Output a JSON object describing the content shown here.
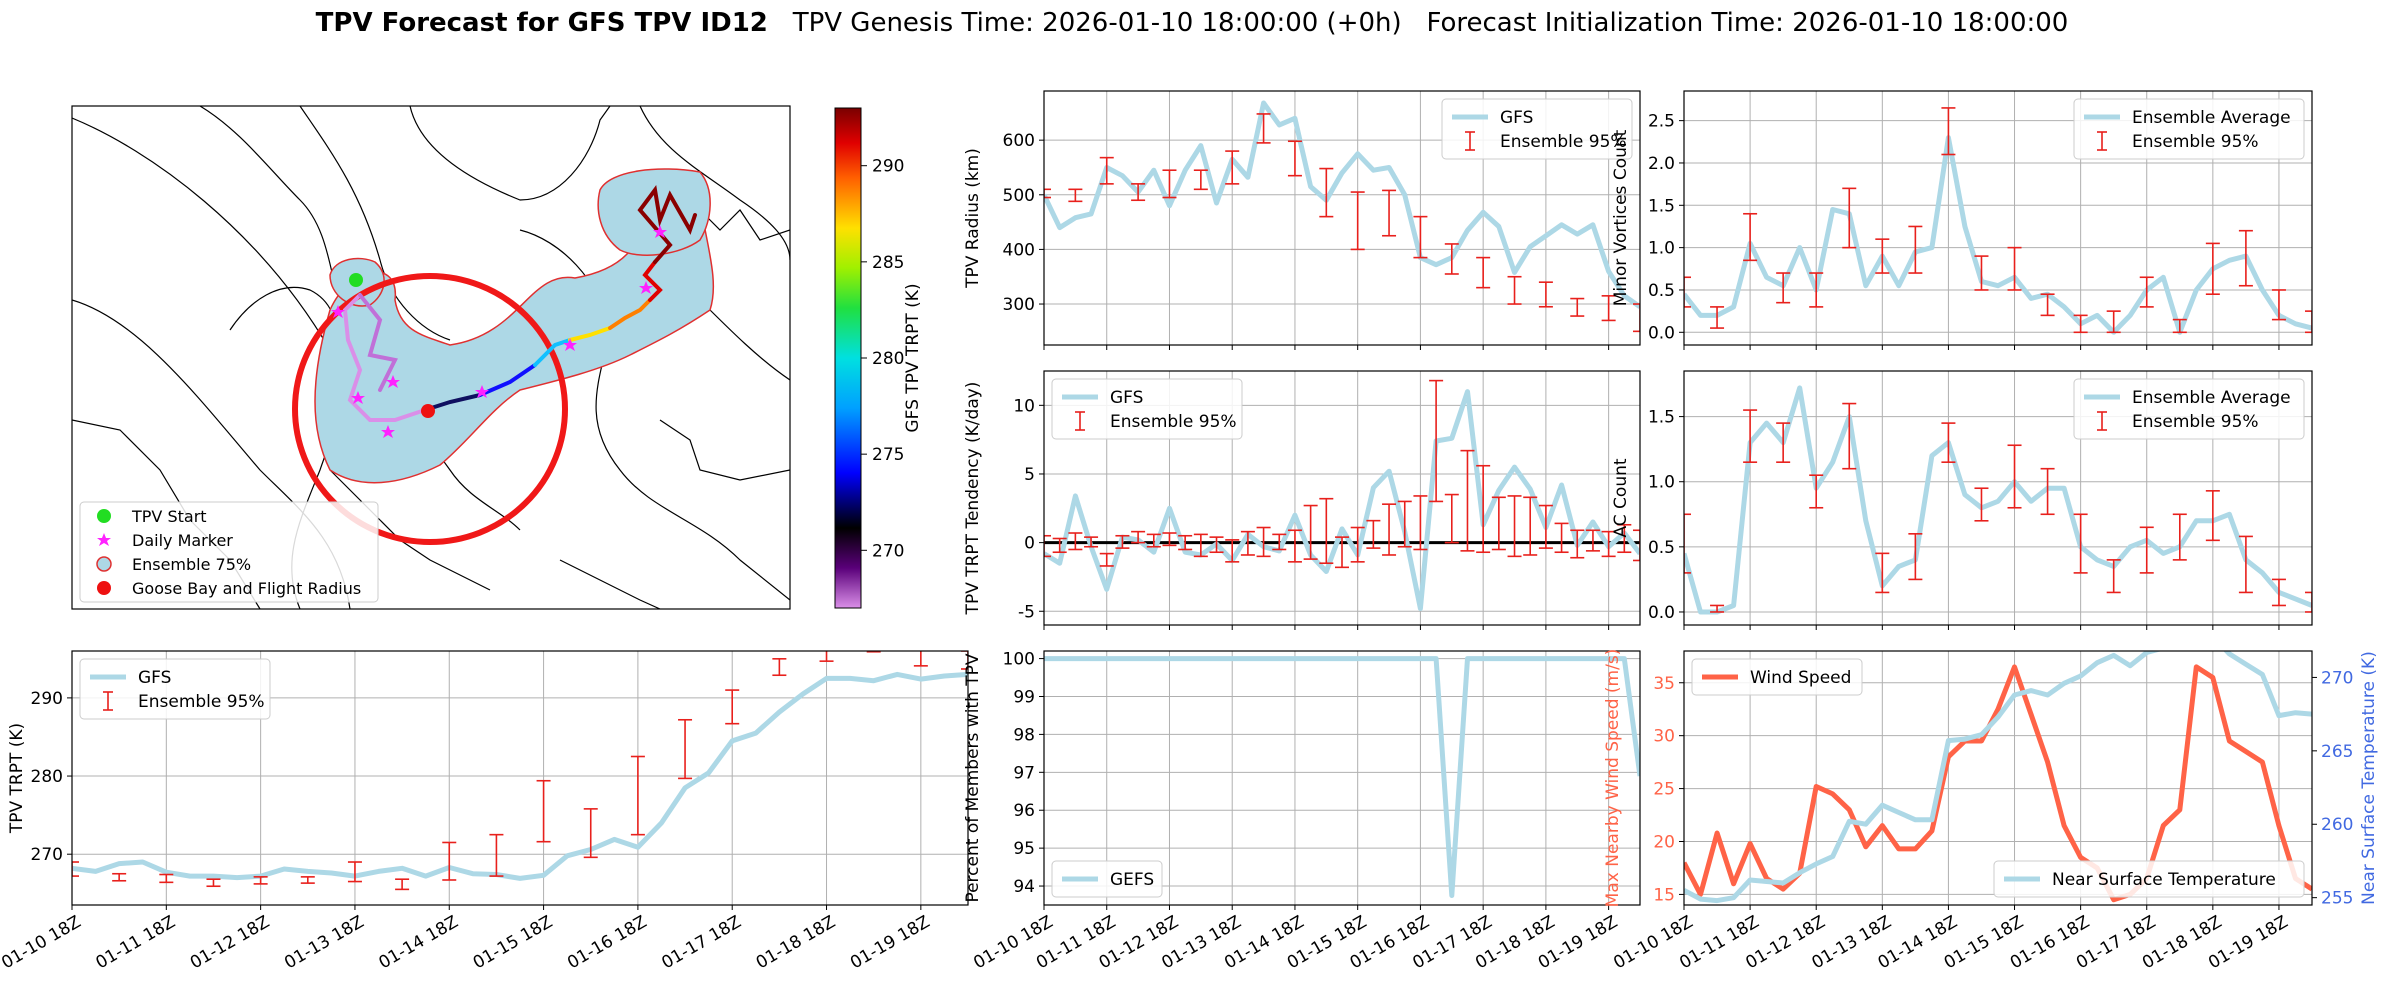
{
  "title": {
    "bold": "TPV Forecast for GFS TPV ID12",
    "genesis": "TPV Genesis Time: 2026-01-10 18:00:00 (+0h)",
    "init": "Forecast Initialization Time: 2026-01-10 18:00:00"
  },
  "colors": {
    "gfs": "#add8e6",
    "errbar": "#e8201c",
    "wind": "#ff6347",
    "temp_axis": "#4169e1",
    "ens75": "#add8e6"
  },
  "map": {
    "colorbar": {
      "label": "GFS TPV TRPT (K)",
      "ticks": [
        "270",
        "275",
        "280",
        "285",
        "290"
      ],
      "range": [
        267,
        293
      ]
    },
    "legend": [
      {
        "label": "TPV Start",
        "marker": "circle",
        "color": "#22dd22"
      },
      {
        "label": "Daily Marker",
        "marker": "star",
        "color": "#ff22ff"
      },
      {
        "label": "Ensemble 75%",
        "marker": "circle-outline",
        "color": "#add8e6"
      },
      {
        "label": "Goose Bay and Flight Radius",
        "marker": "circle",
        "color": "#ee1111"
      }
    ]
  },
  "chart_data": [
    {
      "id": "trpt",
      "type": "line",
      "xlabel": "",
      "ylabel": "TPV TRPT (K)",
      "xlim": [
        0,
        38
      ],
      "ylim": [
        263.5,
        296
      ],
      "x_ticks": [
        {
          "x": 0,
          "label": "01-10 18Z"
        },
        {
          "x": 4,
          "label": "01-11 18Z"
        },
        {
          "x": 8,
          "label": "01-12 18Z"
        },
        {
          "x": 12,
          "label": "01-13 18Z"
        },
        {
          "x": 16,
          "label": "01-14 18Z"
        },
        {
          "x": 20,
          "label": "01-15 18Z"
        },
        {
          "x": 24,
          "label": "01-16 18Z"
        },
        {
          "x": 28,
          "label": "01-17 18Z"
        },
        {
          "x": 32,
          "label": "01-18 18Z"
        },
        {
          "x": 36,
          "label": "01-19 18Z"
        }
      ],
      "y_ticks": [
        270,
        280,
        290
      ],
      "legend": [
        "GFS",
        "Ensemble 95%"
      ],
      "series": [
        {
          "name": "GFS",
          "values": [
            268.2,
            267.8,
            268.8,
            269.0,
            267.7,
            267.2,
            267.2,
            267.0,
            267.2,
            268.1,
            267.8,
            267.6,
            267.2,
            267.8,
            268.2,
            267.2,
            268.3,
            267.5,
            267.4,
            266.9,
            267.3,
            269.8,
            270.6,
            271.9,
            270.9,
            274.0,
            278.5,
            280.4,
            284.5,
            285.5,
            288.2,
            290.5,
            292.5,
            292.5,
            292.2,
            293.0,
            292.4,
            292.8,
            293.0
          ]
        }
      ],
      "errorbars": {
        "name": "Ensemble 95%",
        "x": [
          0,
          2,
          4,
          6,
          8,
          10,
          12,
          14,
          16,
          18,
          20,
          22,
          24,
          26,
          28,
          30,
          32,
          34,
          36,
          38
        ],
        "lo": [
          267.2,
          266.6,
          266.4,
          265.9,
          266.2,
          266.3,
          266.5,
          265.5,
          266.7,
          267.2,
          271.6,
          269.6,
          272.5,
          279.7,
          286.7,
          292.9,
          294.7,
          295.9,
          294.1,
          293.7
        ],
        "hi": [
          269.0,
          267.5,
          267.4,
          266.8,
          267.1,
          267.1,
          269.0,
          266.8,
          271.5,
          272.5,
          279.4,
          275.8,
          282.5,
          287.2,
          291.0,
          295.0,
          296.5,
          297.3,
          296.2,
          296.0
        ]
      }
    },
    {
      "id": "radius",
      "type": "line",
      "ylabel": "TPV Radius (km)",
      "xlim": [
        0,
        38
      ],
      "ylim": [
        225,
        690
      ],
      "y_ticks": [
        300,
        400,
        500,
        600
      ],
      "legend": [
        "GFS",
        "Ensemble 95%"
      ],
      "series": [
        {
          "name": "GFS",
          "values": [
            500,
            440,
            458,
            465,
            550,
            535,
            505,
            545,
            480,
            545,
            590,
            485,
            565,
            532,
            668,
            628,
            640,
            515,
            490,
            540,
            575,
            545,
            550,
            500,
            385,
            372,
            385,
            435,
            468,
            442,
            358,
            405,
            425,
            445,
            428,
            445,
            360,
            315,
            295
          ]
        }
      ],
      "errorbars": {
        "name": "Ensemble 95%",
        "x": [
          0,
          2,
          4,
          6,
          8,
          10,
          12,
          14,
          16,
          18,
          20,
          22,
          24,
          26,
          28,
          30,
          32,
          34,
          36,
          38
        ],
        "lo": [
          495,
          488,
          520,
          490,
          495,
          510,
          520,
          595,
          535,
          460,
          400,
          425,
          385,
          355,
          330,
          300,
          295,
          278,
          270,
          250
        ],
        "hi": [
          510,
          510,
          568,
          520,
          545,
          545,
          580,
          648,
          598,
          548,
          505,
          508,
          460,
          410,
          385,
          350,
          340,
          310,
          315,
          300
        ]
      }
    },
    {
      "id": "tendency",
      "type": "line",
      "ylabel": "TPV TRPT Tendency (K/day)",
      "xlim": [
        0,
        38
      ],
      "ylim": [
        -6,
        12.5
      ],
      "y_ticks": [
        -5,
        0,
        5,
        10
      ],
      "legend": [
        "GFS",
        "Ensemble 95%"
      ],
      "zero_line": true,
      "series": [
        {
          "name": "GFS",
          "values": [
            -0.8,
            -1.5,
            3.4,
            -0.3,
            -3.4,
            0.4,
            0.2,
            -0.7,
            2.5,
            -0.7,
            -0.9,
            -0.1,
            -1.3,
            0.6,
            -0.3,
            -0.6,
            2.0,
            -0.9,
            -2.1,
            1.0,
            -0.9,
            4.0,
            5.2,
            0.8,
            -4.8,
            7.4,
            7.6,
            11.0,
            1.3,
            3.8,
            5.5,
            3.9,
            1.1,
            4.2,
            -0.2,
            1.5,
            -0.3,
            0.7,
            -0.8
          ]
        }
      ],
      "errorbars": {
        "name": "Ensemble 95%",
        "x": [
          0,
          1,
          2,
          3,
          4,
          5,
          6,
          7,
          8,
          9,
          10,
          11,
          12,
          13,
          14,
          15,
          16,
          17,
          18,
          19,
          20,
          21,
          22,
          23,
          24,
          25,
          26,
          27,
          28,
          29,
          30,
          31,
          32,
          33,
          34,
          35,
          36,
          37,
          38
        ],
        "lo": [
          -1.0,
          -0.7,
          -0.5,
          -0.3,
          -1.7,
          -0.4,
          0.0,
          -0.3,
          -0.2,
          -0.5,
          -1.0,
          -0.7,
          -1.4,
          -0.9,
          -1.0,
          -0.5,
          -1.4,
          -1.2,
          -1.5,
          -1.8,
          -1.4,
          -0.4,
          -0.9,
          -0.3,
          -0.5,
          3.0,
          0.0,
          -0.6,
          -0.7,
          -0.5,
          -1.0,
          -0.9,
          -0.4,
          -0.7,
          -1.1,
          -0.6,
          -1.0,
          -0.7,
          -1.3
        ],
        "hi": [
          0.5,
          0.3,
          0.7,
          0.4,
          -0.8,
          0.5,
          0.8,
          0.6,
          0.7,
          0.5,
          0.6,
          0.4,
          0.2,
          0.8,
          1.1,
          0.6,
          0.9,
          2.7,
          3.2,
          0.4,
          1.1,
          1.6,
          2.8,
          3.0,
          3.4,
          11.8,
          3.5,
          6.7,
          5.6,
          3.3,
          3.4,
          3.3,
          2.7,
          1.4,
          0.9,
          0.9,
          0.8,
          1.3,
          0.9
        ]
      }
    },
    {
      "id": "percent",
      "type": "line",
      "ylabel": "Percent of Members with TPV",
      "xlim": [
        0,
        38
      ],
      "ylim": [
        93.5,
        100.2
      ],
      "x_ticks": [
        {
          "x": 0,
          "label": "01-10 18Z"
        },
        {
          "x": 4,
          "label": "01-11 18Z"
        },
        {
          "x": 8,
          "label": "01-12 18Z"
        },
        {
          "x": 12,
          "label": "01-13 18Z"
        },
        {
          "x": 16,
          "label": "01-14 18Z"
        },
        {
          "x": 20,
          "label": "01-15 18Z"
        },
        {
          "x": 24,
          "label": "01-16 18Z"
        },
        {
          "x": 28,
          "label": "01-17 18Z"
        },
        {
          "x": 32,
          "label": "01-18 18Z"
        },
        {
          "x": 36,
          "label": "01-19 18Z"
        }
      ],
      "y_ticks": [
        94,
        95,
        96,
        97,
        98,
        99,
        100
      ],
      "legend": [
        "GEFS"
      ],
      "series": [
        {
          "name": "GEFS",
          "values": [
            100,
            100,
            100,
            100,
            100,
            100,
            100,
            100,
            100,
            100,
            100,
            100,
            100,
            100,
            100,
            100,
            100,
            100,
            100,
            100,
            100,
            100,
            100,
            100,
            100,
            100,
            93.75,
            100,
            100,
            100,
            100,
            100,
            100,
            100,
            100,
            100,
            100,
            100,
            96.9
          ]
        }
      ]
    },
    {
      "id": "minor",
      "type": "line",
      "ylabel": "Minor Vortices Count",
      "xlim": [
        0,
        38
      ],
      "ylim": [
        -0.15,
        2.85
      ],
      "y_ticks": [
        0.0,
        0.5,
        1.0,
        1.5,
        2.0,
        2.5
      ],
      "legend": [
        "Ensemble Average",
        "Ensemble 95%"
      ],
      "series": [
        {
          "name": "Ensemble Average",
          "values": [
            0.45,
            0.2,
            0.2,
            0.3,
            1.05,
            0.65,
            0.55,
            1.0,
            0.5,
            1.45,
            1.4,
            0.55,
            0.9,
            0.55,
            0.95,
            1.0,
            2.3,
            1.25,
            0.6,
            0.55,
            0.65,
            0.4,
            0.45,
            0.3,
            0.1,
            0.2,
            0.0,
            0.2,
            0.5,
            0.65,
            0.0,
            0.5,
            0.75,
            0.85,
            0.9,
            0.5,
            0.2,
            0.1,
            0.05
          ]
        }
      ],
      "errorbars": {
        "name": "Ensemble 95%",
        "x": [
          0,
          2,
          4,
          6,
          8,
          10,
          12,
          14,
          16,
          18,
          20,
          22,
          24,
          26,
          28,
          30,
          32,
          34,
          36,
          38
        ],
        "lo": [
          0.3,
          0.05,
          0.85,
          0.35,
          0.3,
          1.0,
          0.7,
          0.7,
          2.1,
          0.5,
          0.5,
          0.2,
          0.0,
          0.0,
          0.3,
          0.0,
          0.45,
          0.55,
          0.15,
          0.0
        ],
        "hi": [
          0.65,
          0.3,
          1.4,
          0.7,
          0.7,
          1.7,
          1.1,
          1.25,
          2.65,
          0.9,
          1.0,
          0.45,
          0.2,
          0.25,
          0.65,
          0.15,
          1.05,
          1.2,
          0.5,
          0.25
        ]
      }
    },
    {
      "id": "ac",
      "type": "line",
      "ylabel": "AC Count",
      "xlim": [
        0,
        38
      ],
      "ylim": [
        -0.1,
        1.85
      ],
      "y_ticks": [
        0.0,
        0.5,
        1.0,
        1.5
      ],
      "legend": [
        "Ensemble Average",
        "Ensemble 95%"
      ],
      "series": [
        {
          "name": "Ensemble Average",
          "values": [
            0.45,
            0.0,
            0.0,
            0.05,
            1.3,
            1.45,
            1.3,
            1.72,
            0.95,
            1.15,
            1.5,
            0.7,
            0.2,
            0.35,
            0.4,
            1.2,
            1.3,
            0.9,
            0.8,
            0.85,
            1.0,
            0.85,
            0.95,
            0.95,
            0.5,
            0.4,
            0.35,
            0.5,
            0.55,
            0.45,
            0.5,
            0.7,
            0.7,
            0.75,
            0.4,
            0.3,
            0.15,
            0.1,
            0.05
          ]
        }
      ],
      "errorbars": {
        "name": "Ensemble 95%",
        "x": [
          0,
          2,
          4,
          6,
          8,
          10,
          12,
          14,
          16,
          18,
          20,
          22,
          24,
          26,
          28,
          30,
          32,
          34,
          36,
          38
        ],
        "lo": [
          0.3,
          0.0,
          1.15,
          1.15,
          0.8,
          1.1,
          0.15,
          0.25,
          1.15,
          0.7,
          0.8,
          0.75,
          0.3,
          0.15,
          0.3,
          0.4,
          0.55,
          0.15,
          0.05,
          0.0
        ],
        "hi": [
          0.75,
          0.05,
          1.55,
          1.45,
          1.05,
          1.6,
          0.45,
          0.6,
          1.45,
          0.95,
          1.28,
          1.1,
          0.75,
          0.4,
          0.65,
          0.75,
          0.93,
          0.58,
          0.25,
          0.15
        ]
      }
    },
    {
      "id": "wind",
      "type": "line",
      "ylabel": "Max Nearby Wind Speed (m/s)",
      "ylabel_right": "Near Surface Temperature (K)",
      "xlim": [
        0,
        38
      ],
      "ylim": [
        14,
        38
      ],
      "ylim_right": [
        254.5,
        271.8
      ],
      "x_ticks": [
        {
          "x": 0,
          "label": "01-10 18Z"
        },
        {
          "x": 4,
          "label": "01-11 18Z"
        },
        {
          "x": 8,
          "label": "01-12 18Z"
        },
        {
          "x": 12,
          "label": "01-13 18Z"
        },
        {
          "x": 16,
          "label": "01-14 18Z"
        },
        {
          "x": 20,
          "label": "01-15 18Z"
        },
        {
          "x": 24,
          "label": "01-16 18Z"
        },
        {
          "x": 28,
          "label": "01-17 18Z"
        },
        {
          "x": 32,
          "label": "01-18 18Z"
        },
        {
          "x": 36,
          "label": "01-19 18Z"
        }
      ],
      "y_ticks": [
        15,
        20,
        25,
        30,
        35
      ],
      "y_ticks_right": [
        255,
        260,
        265,
        270
      ],
      "legend": [
        "Wind Speed"
      ],
      "legend_right": [
        "Near Surface Temperature"
      ],
      "series": [
        {
          "name": "Wind Speed",
          "axis": "left",
          "values": [
            18.0,
            15.0,
            20.8,
            16.0,
            19.8,
            16.5,
            15.5,
            17.0,
            25.2,
            24.5,
            23.0,
            19.5,
            21.5,
            19.3,
            19.3,
            21.0,
            28.0,
            29.5,
            29.5,
            32.5,
            36.5,
            32.0,
            27.5,
            21.5,
            18.5,
            17.5,
            14.5,
            15.0,
            16.5,
            21.5,
            23.0,
            36.5,
            35.5,
            29.5,
            28.5,
            27.5,
            21.5,
            16.5,
            15.5
          ]
        },
        {
          "name": "Near Surface Temperature",
          "axis": "right",
          "values": [
            255.5,
            254.9,
            254.8,
            255.0,
            256.2,
            256.1,
            256.0,
            256.7,
            257.3,
            257.8,
            260.2,
            260.0,
            261.3,
            260.8,
            260.3,
            260.3,
            265.7,
            265.8,
            266.1,
            267.3,
            268.8,
            269.1,
            268.8,
            269.6,
            270.1,
            271.0,
            271.5,
            270.8,
            271.7,
            272.0,
            273.2,
            273.2,
            272.8,
            271.6,
            270.9,
            270.2,
            267.4,
            267.6,
            267.5
          ]
        }
      ]
    }
  ]
}
